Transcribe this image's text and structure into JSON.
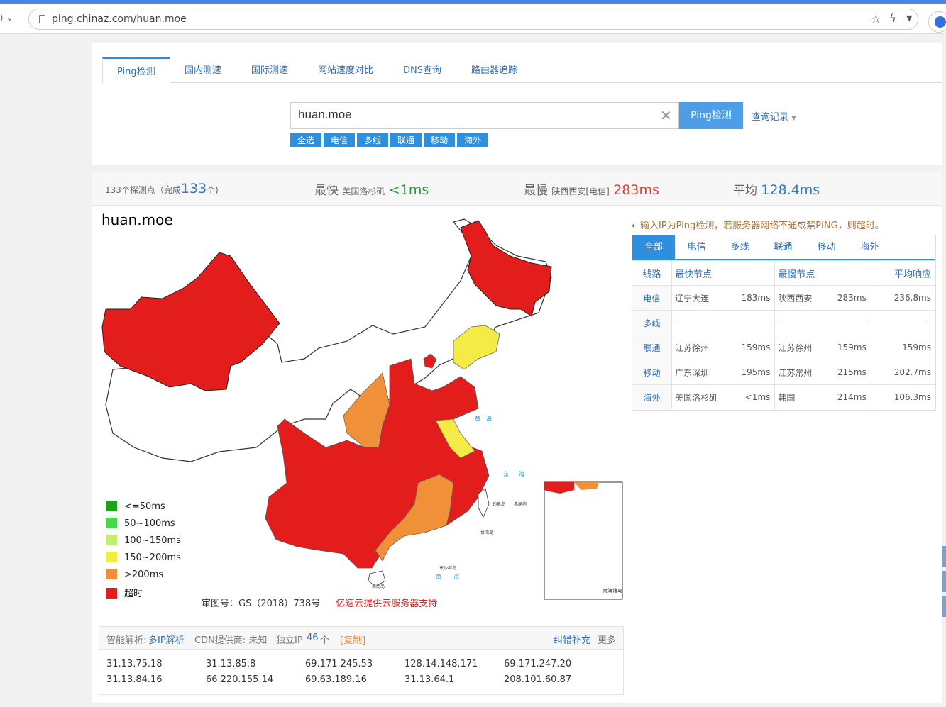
{
  "browser": {
    "url": "ping.chinaz.com/huan.moe"
  },
  "tabs": [
    "Ping检测",
    "国内测速",
    "国际测速",
    "网站速度对比",
    "DNS查询",
    "路由器追踪"
  ],
  "search": {
    "value": "huan.moe",
    "button": "Ping检测",
    "history": "查询记录"
  },
  "filters": [
    "全选",
    "电信",
    "多线",
    "联通",
    "移动",
    "海外"
  ],
  "summary": {
    "count_prefix": "133个探测点（完成",
    "done": "133",
    "count_suffix": "个)",
    "fast_label": "最快",
    "fast_loc": "美国洛杉矶",
    "fast_val": "<1ms",
    "slow_label": "最慢",
    "slow_loc": "陕西西安[电信]",
    "slow_val": "283ms",
    "avg_label": "平均",
    "avg_val": "128.4ms"
  },
  "map": {
    "title": "huan.moe",
    "legend": [
      {
        "label": "<=50ms",
        "color": "#1aa21a"
      },
      {
        "label": "50~100ms",
        "color": "#47d847"
      },
      {
        "label": "100~150ms",
        "color": "#c3ed6c"
      },
      {
        "label": "150~200ms",
        "color": "#f5eb47"
      },
      {
        "label": ">200ms",
        "color": "#f0913a"
      },
      {
        "label": "超时",
        "color": "#e31c1c"
      }
    ],
    "approval": "审图号：GS（2018）738号",
    "sponsor": "亿速云提供云服务器支持",
    "sea_labels": [
      "黄",
      "海",
      "东",
      "海",
      "南",
      "海"
    ],
    "place_labels": [
      "台湾岛",
      "海南岛",
      "钓鱼岛",
      "赤尾屿",
      "东沙群岛"
    ],
    "inset_label": "南海诸岛"
  },
  "notice": "输入IP为Ping检测，若服务器网络不通或禁PING，则超时。",
  "isp_tabs": [
    "全部",
    "电信",
    "多线",
    "联通",
    "移动",
    "海外"
  ],
  "results": {
    "headers": [
      "线路",
      "最快节点",
      "最慢节点",
      "平均响应"
    ],
    "rows": [
      {
        "line": "电信",
        "fast": "辽宁大连",
        "fast_ms": "183ms",
        "slow": "陕西西安",
        "slow_ms": "283ms",
        "avg": "236.8ms"
      },
      {
        "line": "多线",
        "fast": "-",
        "fast_ms": "-",
        "slow": "-",
        "slow_ms": "-",
        "avg": "-"
      },
      {
        "line": "联通",
        "fast": "江苏徐州",
        "fast_ms": "159ms",
        "slow": "江苏徐州",
        "slow_ms": "159ms",
        "avg": "159ms"
      },
      {
        "line": "移动",
        "fast": "广东深圳",
        "fast_ms": "195ms",
        "slow": "江苏常州",
        "slow_ms": "215ms",
        "avg": "202.7ms"
      },
      {
        "line": "海外",
        "fast": "美国洛杉矶",
        "fast_ms": "<1ms",
        "slow": "韩国",
        "slow_ms": "214ms",
        "avg": "106.3ms"
      }
    ]
  },
  "ip_info": {
    "smart_label": "智能解析:",
    "smart_link": "多IP解析",
    "cdn": "CDN提供商: 未知",
    "unique_label": "独立IP",
    "unique_count": "46",
    "unique_unit": "个",
    "copy": "[复制]",
    "correct": "纠错补充",
    "more": "更多",
    "ips": [
      "31.13.75.18",
      "31.13.85.8",
      "69.171.245.53",
      "128.14.148.171",
      "69.171.247.20",
      "31.13.84.16",
      "66.220.155.14",
      "69.63.189.16",
      "31.13.64.1",
      "208.101.60.87"
    ]
  }
}
